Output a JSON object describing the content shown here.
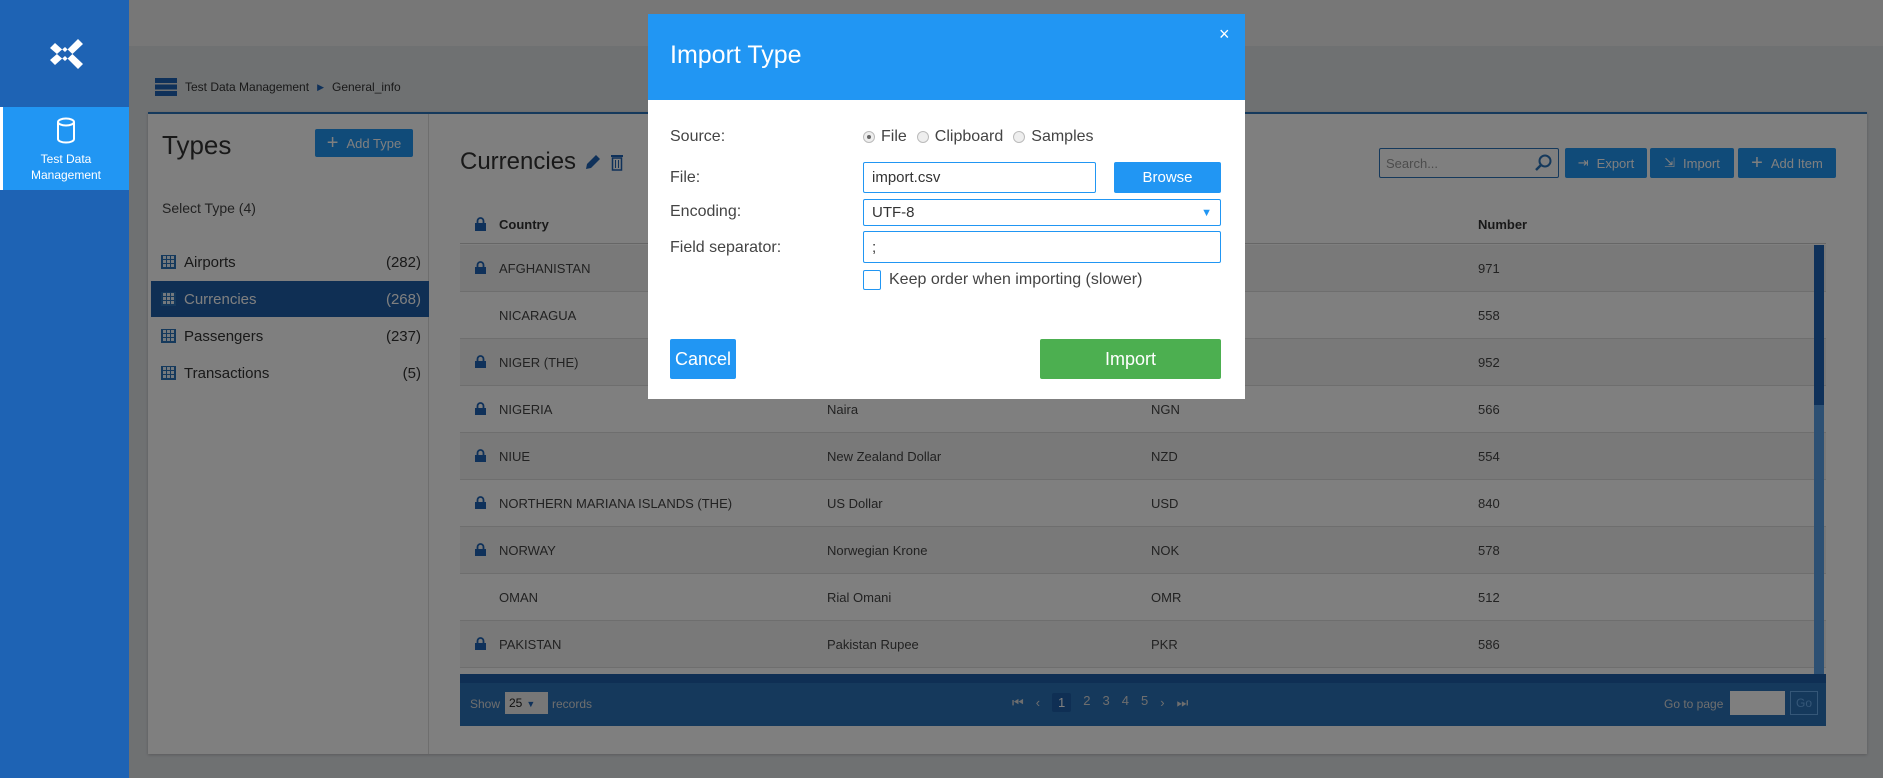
{
  "sidebar": {
    "logo": "app-logo",
    "active_item": "Test Data Management"
  },
  "breadcrumb": [
    "Test Data Management",
    "General_info"
  ],
  "types_panel": {
    "title": "Types",
    "add_button": "Add Type",
    "select_label": "Select Type (4)",
    "items": [
      {
        "label": "Airports",
        "count": "(282)"
      },
      {
        "label": "Currencies",
        "count": "(268)",
        "selected": true
      },
      {
        "label": "Passengers",
        "count": "(237)"
      },
      {
        "label": "Transactions",
        "count": "(5)"
      }
    ]
  },
  "content": {
    "title": "Currencies",
    "search_placeholder": "Search...",
    "export": "Export",
    "import": "Import",
    "add_item": "Add Item",
    "columns": [
      "Country",
      "",
      "",
      "Number"
    ],
    "rows": [
      {
        "locked": true,
        "country": "AFGHANISTAN",
        "currency": "",
        "code": "",
        "number": "971"
      },
      {
        "locked": false,
        "country": "NICARAGUA",
        "currency": "",
        "code": "",
        "number": "558"
      },
      {
        "locked": true,
        "country": "NIGER (THE)",
        "currency": "",
        "code": "",
        "number": "952"
      },
      {
        "locked": true,
        "country": "NIGERIA",
        "currency": "Naira",
        "code": "NGN",
        "number": "566"
      },
      {
        "locked": true,
        "country": "NIUE",
        "currency": "New Zealand Dollar",
        "code": "NZD",
        "number": "554"
      },
      {
        "locked": true,
        "country": "NORTHERN MARIANA ISLANDS (THE)",
        "currency": "US Dollar",
        "code": "USD",
        "number": "840"
      },
      {
        "locked": true,
        "country": "NORWAY",
        "currency": "Norwegian Krone",
        "code": "NOK",
        "number": "578"
      },
      {
        "locked": false,
        "country": "OMAN",
        "currency": "Rial Omani",
        "code": "OMR",
        "number": "512"
      },
      {
        "locked": true,
        "country": "PAKISTAN",
        "currency": "Pakistan Rupee",
        "code": "PKR",
        "number": "586"
      }
    ]
  },
  "pagination": {
    "show": "Show",
    "page_size": "25",
    "records": "records",
    "pages": [
      "1",
      "2",
      "3",
      "4",
      "5"
    ],
    "current": "1",
    "goto": "Go to page",
    "go": "Go"
  },
  "modal": {
    "title": "Import Type",
    "close": "×",
    "source_label": "Source:",
    "sources": [
      "File",
      "Clipboard",
      "Samples"
    ],
    "source_selected": "File",
    "file_label": "File:",
    "file_value": "import.csv",
    "browse": "Browse",
    "encoding_label": "Encoding:",
    "encoding_value": "UTF-8",
    "separator_label": "Field separator:",
    "separator_value": ";",
    "keep_order": "Keep order when importing (slower)",
    "keep_order_checked": false,
    "cancel": "Cancel",
    "import": "Import"
  },
  "colors": {
    "primary": "#2196f3",
    "sidebar": "#1e63b4",
    "success": "#4caf50"
  }
}
